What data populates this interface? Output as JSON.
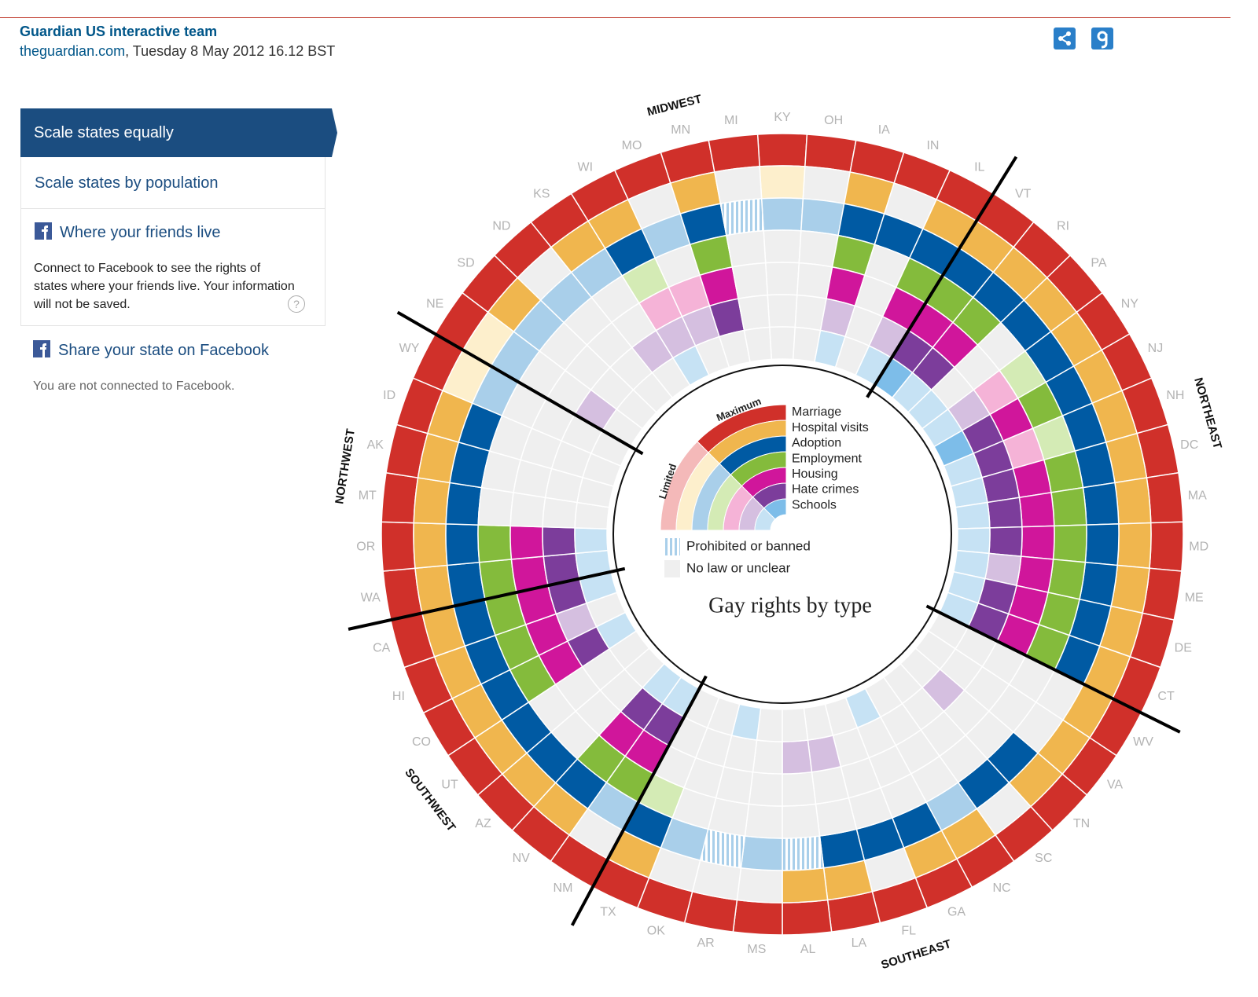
{
  "header": {
    "author": "Guardian US interactive team",
    "site": "theguardian.com",
    "date": ", Tuesday 8 May 2012 16.12 BST"
  },
  "sidebar": {
    "tabs": [
      "Scale states equally",
      "Scale states by population"
    ],
    "friends": {
      "title": "Where your friends live",
      "text": "Connect to Facebook to see the rights of states where your friends live. Your information will not be saved.",
      "help": "?"
    },
    "share": "Share your state on Facebook",
    "status": "You are not connected to Facebook."
  },
  "chart_data": {
    "type": "radial-grid",
    "title": "Gay rights by type",
    "rings": [
      {
        "name": "Marriage",
        "color": "#d0302a",
        "limited_color": "#f4b9b9"
      },
      {
        "name": "Hospital visits",
        "color": "#f0b64e",
        "limited_color": "#fdefcc"
      },
      {
        "name": "Adoption",
        "color": "#005aa3",
        "limited_color": "#a9cfea"
      },
      {
        "name": "Employment",
        "color": "#84bb3c",
        "limited_color": "#d4ebb5"
      },
      {
        "name": "Housing",
        "color": "#d0169b",
        "limited_color": "#f5b3d7"
      },
      {
        "name": "Hate crimes",
        "color": "#7c3d9b",
        "limited_color": "#d5bfe0"
      },
      {
        "name": "Schools",
        "color": "#7dbde9",
        "limited_color": "#c6e2f4"
      }
    ],
    "scale_labels": {
      "max": "Maximum",
      "limited": "Limited"
    },
    "prohibited": {
      "label": "Prohibited or banned",
      "color": "#a9cfea"
    },
    "none": {
      "label": "No law or unclear",
      "color": "#efefef"
    },
    "regions": [
      {
        "name": "MIDWEST",
        "states": [
          "NE",
          "SD",
          "ND",
          "KS",
          "WI",
          "MO",
          "MN",
          "MI",
          "KY",
          "OH",
          "IA",
          "IN",
          "IL"
        ]
      },
      {
        "name": "NORTHEAST",
        "states": [
          "VT",
          "RI",
          "PA",
          "NY",
          "NJ",
          "NH",
          "DC",
          "MA",
          "MD",
          "ME",
          "DE",
          "CT"
        ]
      },
      {
        "name": "SOUTHEAST",
        "states": [
          "WV",
          "VA",
          "TN",
          "SC",
          "NC",
          "GA",
          "FL",
          "LA",
          "AL",
          "MS",
          "AR",
          "OK",
          "TX"
        ]
      },
      {
        "name": "SOUTHWEST",
        "states": [
          "NM",
          "NV",
          "AZ",
          "UT",
          "CO",
          "HI",
          "CA"
        ]
      },
      {
        "name": "NORTHWEST",
        "states": [
          "WA",
          "OR",
          "MT",
          "AK",
          "ID",
          "WY"
        ]
      }
    ],
    "states": [
      {
        "name": "KY",
        "rights": "MLLNNNN"
      },
      {
        "name": "OH",
        "rights": "MNLNNNN"
      },
      {
        "name": "IA",
        "rights": "MMMMMLL"
      },
      {
        "name": "IN",
        "rights": "MNMNNNN"
      },
      {
        "name": "IL",
        "rights": "MMMMMLL"
      },
      {
        "name": "VT",
        "rights": "MMMMMMM"
      },
      {
        "name": "RI",
        "rights": "MMMMMML"
      },
      {
        "name": "PA",
        "rights": "MMMNNNL"
      },
      {
        "name": "NY",
        "rights": "MMMLLLL"
      },
      {
        "name": "NJ",
        "rights": "MMMMMMM"
      },
      {
        "name": "NH",
        "rights": "MMMLLML"
      },
      {
        "name": "DC",
        "rights": "MMMMMML"
      },
      {
        "name": "MA",
        "rights": "MMMMMML"
      },
      {
        "name": "MD",
        "rights": "MMMMMML"
      },
      {
        "name": "ME",
        "rights": "MMMMMLL"
      },
      {
        "name": "DE",
        "rights": "MMMMMML"
      },
      {
        "name": "CT",
        "rights": "MMMMMML"
      },
      {
        "name": "WV",
        "rights": "MMNNNNN"
      },
      {
        "name": "VA",
        "rights": "MMNNNNN"
      },
      {
        "name": "TN",
        "rights": "MMMNNLN"
      },
      {
        "name": "SC",
        "rights": "MNMNNNN"
      },
      {
        "name": "NC",
        "rights": "MMLNNNN"
      },
      {
        "name": "GA",
        "rights": "MMMNNNL"
      },
      {
        "name": "FL",
        "rights": "MNMNNNN"
      },
      {
        "name": "LA",
        "rights": "MMMNNLN"
      },
      {
        "name": "AL",
        "rights": "MMPNNLN"
      },
      {
        "name": "MS",
        "rights": "MNLNNNN"
      },
      {
        "name": "AR",
        "rights": "MNPNNNL"
      },
      {
        "name": "OK",
        "rights": "MNLNNNN"
      },
      {
        "name": "TX",
        "rights": "MMMLNNN"
      },
      {
        "name": "NM",
        "rights": "MNLMMML"
      },
      {
        "name": "NV",
        "rights": "MMMMMML"
      },
      {
        "name": "AZ",
        "rights": "MMMNNNN"
      },
      {
        "name": "UT",
        "rights": "MMMNNNN"
      },
      {
        "name": "CO",
        "rights": "MMMMMML"
      },
      {
        "name": "HI",
        "rights": "MMMMMLN"
      },
      {
        "name": "CA",
        "rights": "MMMMMML"
      },
      {
        "name": "WA",
        "rights": "MMMMMML"
      },
      {
        "name": "OR",
        "rights": "MMMMMML"
      },
      {
        "name": "MT",
        "rights": "MMMNNNN"
      },
      {
        "name": "AK",
        "rights": "MMMNNNN"
      },
      {
        "name": "ID",
        "rights": "MMMNNNN"
      },
      {
        "name": "WY",
        "rights": "MLLNNNN"
      },
      {
        "name": "NE",
        "rights": "MLLNNLN"
      },
      {
        "name": "SD",
        "rights": "MMLNNNN"
      },
      {
        "name": "ND",
        "rights": "MNLNNNN"
      },
      {
        "name": "KS",
        "rights": "MMLNNLN"
      },
      {
        "name": "WI",
        "rights": "MMMLLLL"
      },
      {
        "name": "MO",
        "rights": "MNLNLLN"
      },
      {
        "name": "MN",
        "rights": "MMMMMMN"
      },
      {
        "name": "MI",
        "rights": "MNPNNNN"
      }
    ]
  }
}
